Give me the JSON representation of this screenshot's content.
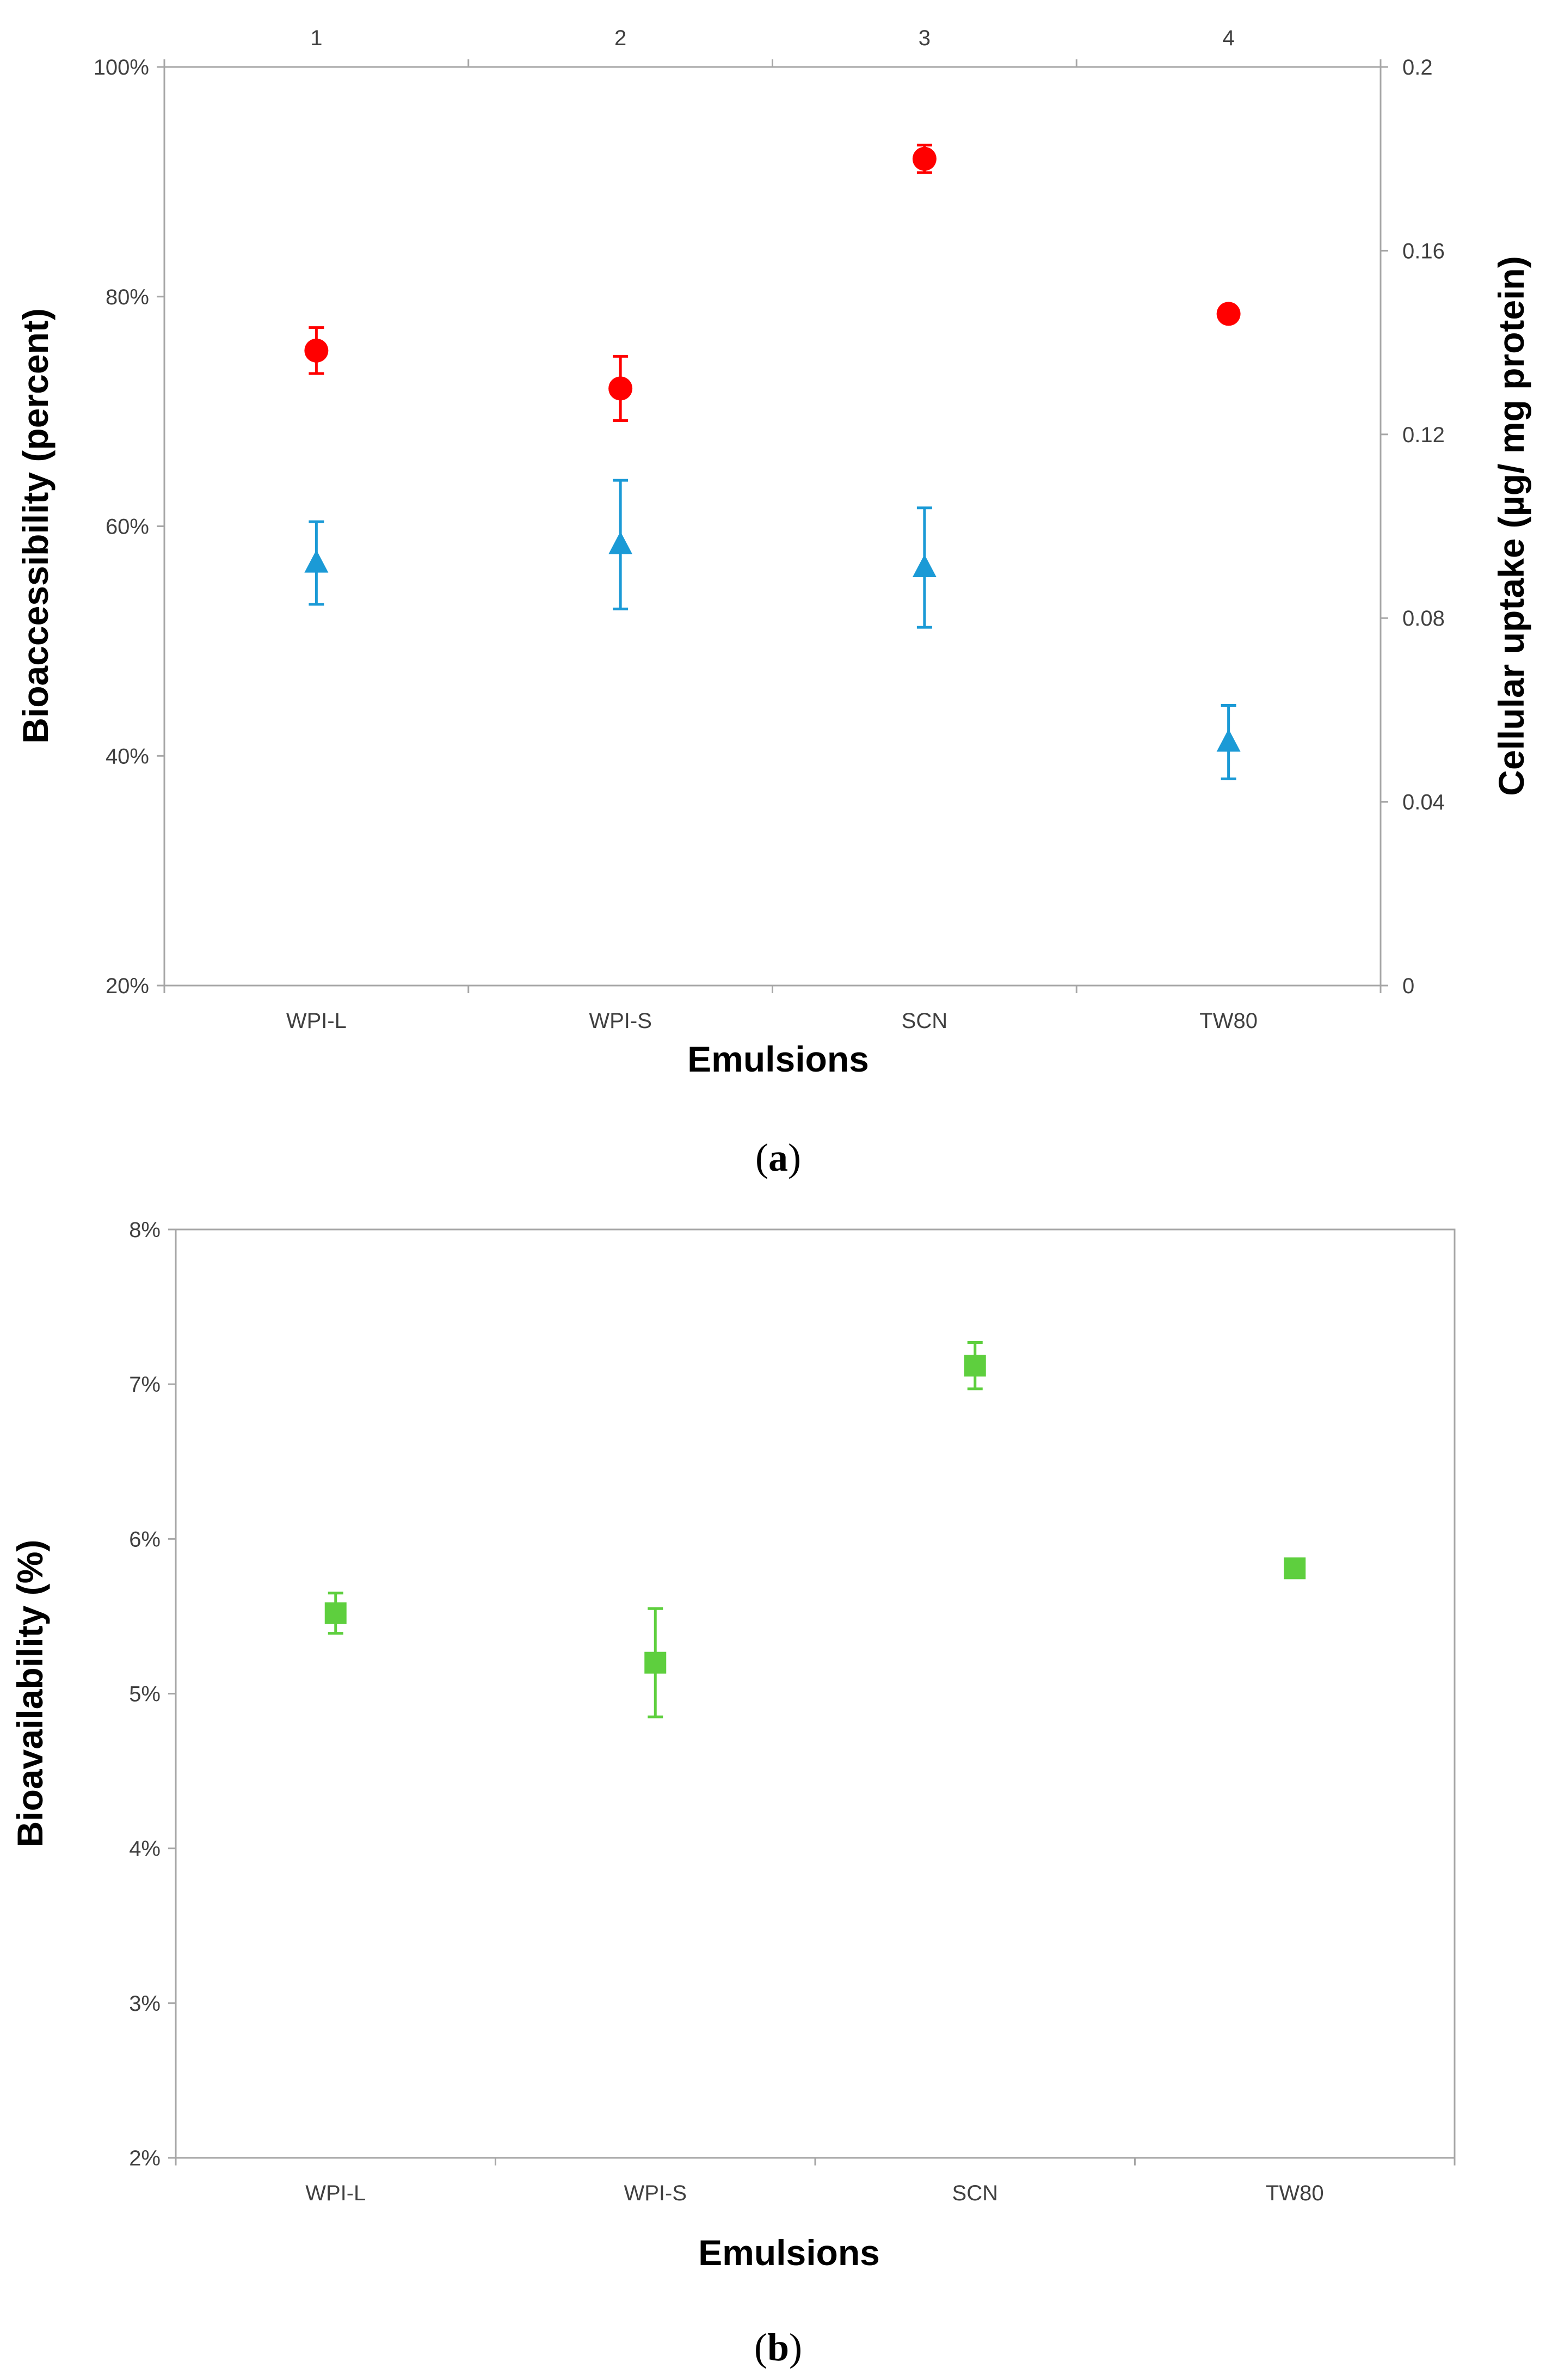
{
  "chart_data": [
    {
      "type": "scatter",
      "panel": "a",
      "caption_open": "(",
      "caption_letter": "a",
      "caption_close": ")",
      "categories": [
        "WPI-L",
        "WPI-S",
        "SCN",
        "TW80"
      ],
      "secondary_x_ticks": [
        "1",
        "2",
        "3",
        "4"
      ],
      "xlabel": "Emulsions",
      "ylabel": "Bioaccessibility (percent)",
      "ylabel_right": "Cellular uptake (µg/ mg protein)",
      "ylim": [
        0.2,
        1.0
      ],
      "y_ticks": [
        0.2,
        0.4,
        0.6,
        0.8,
        1.0
      ],
      "y_tick_labels": [
        "20%",
        "40%",
        "60%",
        "80%",
        "100%"
      ],
      "ylim_right": [
        0,
        0.2
      ],
      "y_ticks_right": [
        0,
        0.04,
        0.08,
        0.12,
        0.16,
        0.2
      ],
      "y_tick_labels_right": [
        "0",
        "0.04",
        "0.08",
        "0.12",
        "0.16",
        "0.2"
      ],
      "series": [
        {
          "name": "Bioaccessibility",
          "axis": "left",
          "marker": "circle",
          "color": "#ff0000",
          "values": [
            0.753,
            0.72,
            0.92,
            0.785
          ],
          "errors": [
            0.02,
            0.028,
            0.012,
            0.005
          ]
        },
        {
          "name": "Cellular uptake",
          "axis": "right",
          "marker": "triangle",
          "color": "#1b9ad6",
          "values": [
            0.092,
            0.096,
            0.091,
            0.053
          ],
          "errors": [
            0.009,
            0.014,
            0.013,
            0.008
          ]
        }
      ]
    },
    {
      "type": "scatter",
      "panel": "b",
      "caption_open": "(",
      "caption_letter": "b",
      "caption_close": ")",
      "categories": [
        "WPI-L",
        "WPI-S",
        "SCN",
        "TW80"
      ],
      "xlabel": "Emulsions",
      "ylabel": "Bioavailability (%)",
      "ylim": [
        0.02,
        0.08
      ],
      "y_ticks": [
        0.02,
        0.03,
        0.04,
        0.05,
        0.06,
        0.07,
        0.08
      ],
      "y_tick_labels": [
        "2%",
        "3%",
        "4%",
        "5%",
        "6%",
        "7%",
        "8%"
      ],
      "series": [
        {
          "name": "Bioavailability",
          "axis": "left",
          "marker": "square",
          "color": "#5ecf3e",
          "values": [
            0.0552,
            0.052,
            0.0712,
            0.0581
          ],
          "errors": [
            0.0013,
            0.0035,
            0.0015,
            0.0002
          ]
        }
      ]
    }
  ]
}
